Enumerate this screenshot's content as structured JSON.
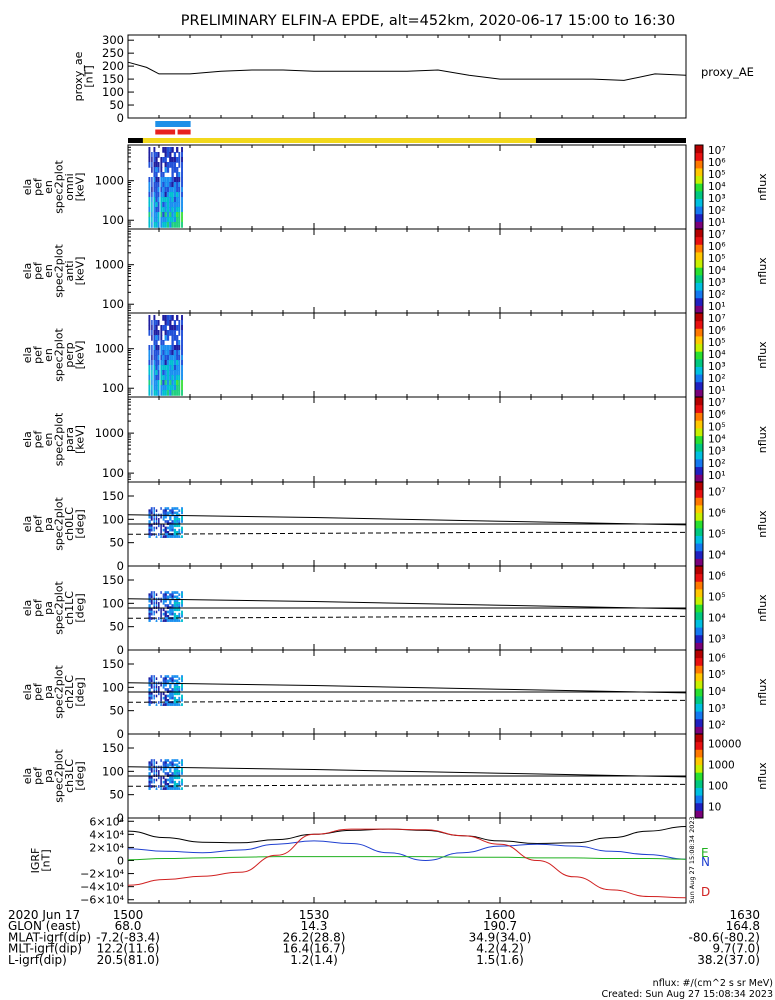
{
  "title": "PRELIMINARY ELFIN-A EPDE, alt=452km, 2020-06-17 15:00 to 16:30",
  "colors": {
    "axis": "#000000",
    "yellow_bar": "#f2d81c",
    "blue_bar": "#1e90e8",
    "red_bar": "#e8201e",
    "bx": "#2040d0",
    "by": "#20b020",
    "bz": "#d02020"
  },
  "panels": [
    {
      "id": "proxy_ae",
      "ylabel": [
        "proxy_ae",
        "[nT]"
      ],
      "right_label": "proxy_AE",
      "yticks": [
        "300",
        "250",
        "200",
        "150",
        "100",
        "50",
        "0"
      ]
    },
    {
      "id": "omni",
      "ylabel": [
        "ela",
        "pef",
        "en",
        "spec2plot",
        "omni",
        "[keV]"
      ],
      "yticks": [
        "1000",
        "100"
      ],
      "cbar_label": "nflux",
      "cbar_ticks": [
        "10⁷",
        "10⁶",
        "10⁵",
        "10⁴",
        "10³",
        "10²",
        "10¹"
      ]
    },
    {
      "id": "anti",
      "ylabel": [
        "ela",
        "pef",
        "en",
        "spec2plot",
        "anti",
        "[keV]"
      ],
      "yticks": [
        "1000",
        "100"
      ],
      "cbar_label": "nflux",
      "cbar_ticks": [
        "10⁷",
        "10⁶",
        "10⁵",
        "10⁴",
        "10³",
        "10²",
        "10¹"
      ]
    },
    {
      "id": "perp",
      "ylabel": [
        "ela",
        "pef",
        "en",
        "spec2plot",
        "perp",
        "[keV]"
      ],
      "yticks": [
        "1000",
        "100"
      ],
      "cbar_label": "nflux",
      "cbar_ticks": [
        "10⁷",
        "10⁶",
        "10⁵",
        "10⁴",
        "10³",
        "10²",
        "10¹"
      ]
    },
    {
      "id": "para",
      "ylabel": [
        "ela",
        "pef",
        "en",
        "spec2plot",
        "para",
        "[keV]"
      ],
      "yticks": [
        "1000",
        "100"
      ],
      "cbar_label": "nflux",
      "cbar_ticks": [
        "10⁷",
        "10⁶",
        "10⁵",
        "10⁴",
        "10³",
        "10²",
        "10¹"
      ]
    },
    {
      "id": "ch0LC",
      "ylabel": [
        "ela",
        "pef",
        "pa",
        "spec2plot",
        "ch0LC",
        "[deg]"
      ],
      "yticks": [
        "150",
        "100",
        "50",
        "0"
      ],
      "cbar_label": "nflux",
      "cbar_ticks": [
        "10⁷",
        "10⁶",
        "10⁵",
        "10⁴"
      ]
    },
    {
      "id": "ch1LC",
      "ylabel": [
        "ela",
        "pef",
        "pa",
        "spec2plot",
        "ch1LC",
        "[deg]"
      ],
      "yticks": [
        "150",
        "100",
        "50",
        "0"
      ],
      "cbar_label": "nflux",
      "cbar_ticks": [
        "10⁶",
        "10⁵",
        "10⁴",
        "10³"
      ]
    },
    {
      "id": "ch2LC",
      "ylabel": [
        "ela",
        "pef",
        "pa",
        "spec2plot",
        "ch2LC",
        "[deg]"
      ],
      "yticks": [
        "150",
        "100",
        "50",
        "0"
      ],
      "cbar_label": "nflux",
      "cbar_ticks": [
        "10⁶",
        "10⁵",
        "10⁴",
        "10³",
        "10²"
      ]
    },
    {
      "id": "ch3LC",
      "ylabel": [
        "ela",
        "pef",
        "pa",
        "spec2plot",
        "ch3LC",
        "[deg]"
      ],
      "yticks": [
        "150",
        "100",
        "50",
        "0"
      ],
      "cbar_label": "nflux",
      "cbar_ticks": [
        "10000",
        "1000",
        "100",
        "10"
      ]
    },
    {
      "id": "igrf",
      "ylabel": [
        "IGRF",
        "[nT]"
      ],
      "yticks": [
        "6×10⁴",
        "4×10⁴",
        "2×10⁴",
        "0",
        "−2×10⁴",
        "−4×10⁴",
        "−6×10⁴"
      ],
      "right_labels": [
        "E",
        "N",
        "D"
      ]
    }
  ],
  "footer": {
    "rows": [
      {
        "label": "2020 Jun 17",
        "values": [
          "1500",
          "1530",
          "1600",
          "1630"
        ]
      },
      {
        "label": "GLON (east)",
        "values": [
          "68.0",
          "14.3",
          "190.7",
          "164.8"
        ]
      },
      {
        "label": "MLAT-igrf(dip)",
        "values": [
          "-7.2(-83.4)",
          "26.2(28.8)",
          "34.9(34.0)",
          "-80.6(-80.2)"
        ]
      },
      {
        "label": "MLT-igrf(dip)",
        "values": [
          "12.2(11.6)",
          "16.4(16.7)",
          "4.2(4.2)",
          "9.7(7.0)"
        ]
      },
      {
        "label": "L-igrf(dip)",
        "values": [
          "20.5(81.0)",
          "1.2(1.4)",
          "1.5(1.6)",
          "38.2(37.0)"
        ]
      }
    ],
    "units_note": "nflux: #/(cm^2 s sr MeV)",
    "created": "Created: Sun Aug 27 15:08:34 2023",
    "side_stamp": "Sun Aug 27 15:08:34 2023"
  },
  "chart_data": [
    {
      "type": "line",
      "title": "",
      "ylabel": "proxy_ae [nT]",
      "xlabel": "",
      "x_minutes_after_1500": [
        0,
        3,
        5,
        7,
        10,
        15,
        20,
        25,
        30,
        35,
        40,
        45,
        50,
        55,
        60,
        65,
        70,
        75,
        80,
        85,
        90
      ],
      "values": [
        215,
        195,
        170,
        170,
        170,
        180,
        185,
        185,
        180,
        180,
        180,
        180,
        185,
        165,
        150,
        150,
        150,
        150,
        145,
        170,
        165
      ],
      "ylim": [
        0,
        320
      ]
    },
    {
      "type": "heatmap",
      "title": "",
      "ylabel": "ela pef en spec2plot omni [keV]",
      "yscale": "log",
      "ylim": [
        60,
        8000
      ],
      "x_minutes_active": [
        3.5,
        8.5
      ],
      "zlabel": "nflux",
      "zlim": [
        10,
        10000000
      ]
    },
    {
      "type": "heatmap",
      "title": "",
      "ylabel": "ela pef en spec2plot anti [keV]",
      "yscale": "log",
      "ylim": [
        60,
        8000
      ],
      "x_minutes_active": [],
      "zlabel": "nflux",
      "zlim": [
        10,
        10000000
      ]
    },
    {
      "type": "heatmap",
      "title": "",
      "ylabel": "ela pef en spec2plot perp [keV]",
      "yscale": "log",
      "ylim": [
        60,
        8000
      ],
      "x_minutes_active": [
        3.5,
        8.5
      ],
      "zlabel": "nflux",
      "zlim": [
        10,
        10000000
      ]
    },
    {
      "type": "heatmap",
      "title": "",
      "ylabel": "ela pef en spec2plot para [keV]",
      "yscale": "log",
      "ylim": [
        60,
        8000
      ],
      "x_minutes_active": [],
      "zlabel": "nflux",
      "zlim": [
        10,
        10000000
      ]
    },
    {
      "type": "line",
      "title": "",
      "ylabel": "ela pef pa spec2plot ch0LC [deg]",
      "ylim": [
        0,
        180
      ],
      "series": [
        {
          "x": [
            0,
            30,
            60,
            90
          ],
          "values": [
            110,
            104,
            96,
            88
          ]
        },
        {
          "x": [
            0,
            90
          ],
          "values": [
            90,
            90
          ]
        },
        {
          "x": [
            0,
            30,
            60,
            90
          ],
          "values": [
            68,
            70,
            72,
            72
          ]
        }
      ]
    },
    {
      "type": "line",
      "title": "",
      "ylabel": "ela pef pa spec2plot ch1LC [deg]",
      "ylim": [
        0,
        180
      ],
      "series": [
        {
          "x": [
            0,
            30,
            60,
            90
          ],
          "values": [
            110,
            104,
            96,
            88
          ]
        },
        {
          "x": [
            0,
            90
          ],
          "values": [
            90,
            90
          ]
        },
        {
          "x": [
            0,
            30,
            60,
            90
          ],
          "values": [
            68,
            70,
            72,
            72
          ]
        }
      ]
    },
    {
      "type": "line",
      "title": "",
      "ylabel": "ela pef pa spec2plot ch2LC [deg]",
      "ylim": [
        0,
        180
      ],
      "series": [
        {
          "x": [
            0,
            30,
            60,
            90
          ],
          "values": [
            110,
            104,
            96,
            88
          ]
        },
        {
          "x": [
            0,
            90
          ],
          "values": [
            90,
            90
          ]
        },
        {
          "x": [
            0,
            30,
            60,
            90
          ],
          "values": [
            68,
            70,
            72,
            72
          ]
        }
      ]
    },
    {
      "type": "line",
      "title": "",
      "ylabel": "ela pef pa spec2plot ch3LC [deg]",
      "ylim": [
        0,
        180
      ],
      "series": [
        {
          "x": [
            0,
            30,
            60,
            90
          ],
          "values": [
            110,
            104,
            96,
            88
          ]
        },
        {
          "x": [
            0,
            90
          ],
          "values": [
            90,
            90
          ]
        },
        {
          "x": [
            0,
            30,
            60,
            90
          ],
          "values": [
            68,
            70,
            72,
            72
          ]
        }
      ]
    },
    {
      "type": "line",
      "title": "",
      "ylabel": "IGRF [nT]",
      "ylim": [
        -65000,
        65000
      ],
      "x": [
        0,
        6,
        12,
        18,
        24,
        30,
        36,
        42,
        48,
        54,
        60,
        66,
        72,
        78,
        84,
        90
      ],
      "series": [
        {
          "color": "#000000",
          "values": [
            45000,
            35000,
            28000,
            27000,
            32000,
            40000,
            46000,
            48000,
            46000,
            38000,
            30000,
            26000,
            27000,
            35000,
            45000,
            52000
          ]
        },
        {
          "color": "#2040d0",
          "values": [
            18000,
            14000,
            12000,
            16000,
            25000,
            30000,
            26000,
            12000,
            0,
            12000,
            22000,
            25000,
            22000,
            14000,
            9000,
            2000
          ]
        },
        {
          "color": "#20b020",
          "values": [
            1000,
            3000,
            4000,
            5000,
            6000,
            6000,
            6000,
            6000,
            6000,
            5000,
            5000,
            4000,
            4000,
            3000,
            3000,
            2000
          ]
        },
        {
          "color": "#d02020",
          "values": [
            -38000,
            -29000,
            -24000,
            -18000,
            8000,
            40000,
            48000,
            48000,
            47000,
            38000,
            25000,
            0,
            -25000,
            -45000,
            -55000,
            -57000
          ]
        }
      ]
    }
  ]
}
